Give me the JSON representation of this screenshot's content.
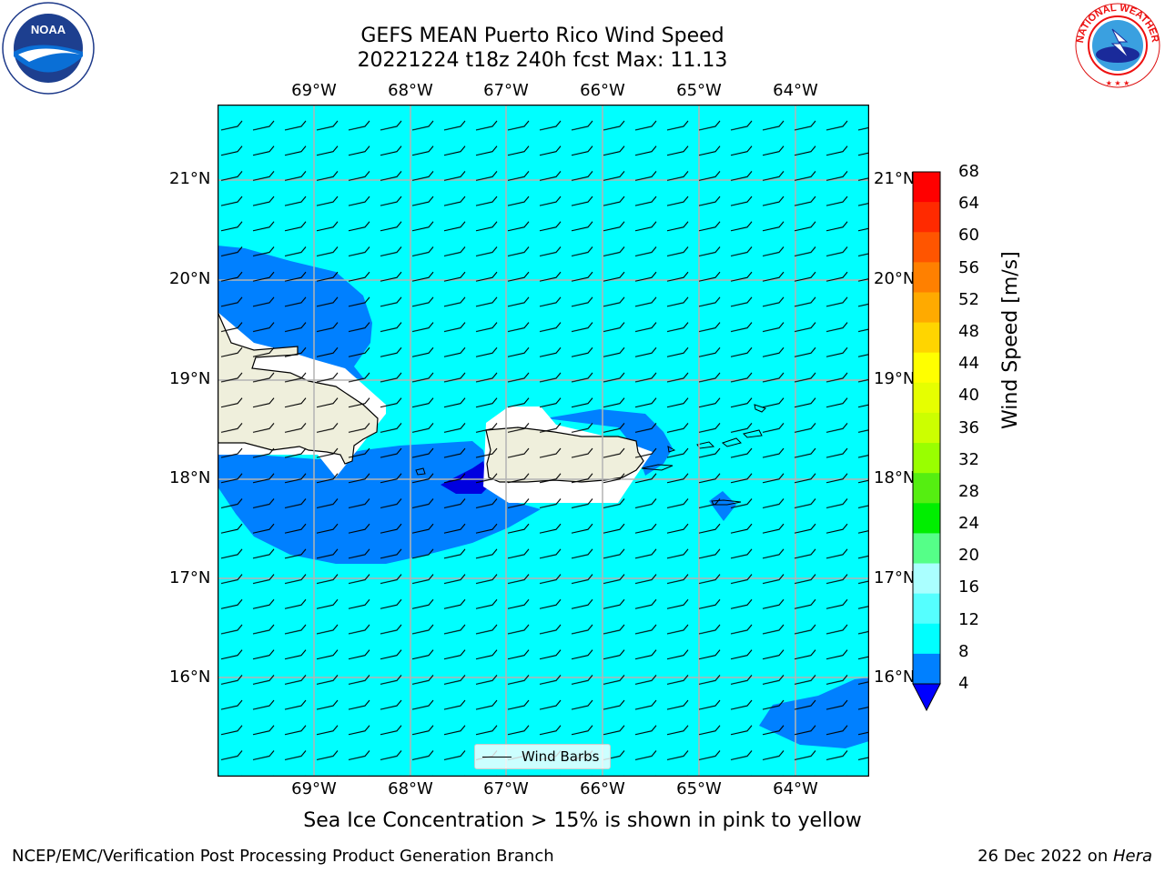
{
  "title": {
    "line1": "GEFS MEAN Puerto Rico Wind Speed",
    "line2": "20221224 t18z 240h fcst   Max: 11.13"
  },
  "logos": {
    "left": {
      "icon": "noaa-logo",
      "text": "NOAA"
    },
    "right": {
      "icon": "nws-logo",
      "text": "NATIONAL WEATHER SERVICE"
    }
  },
  "map": {
    "lat_labels": [
      "21°N",
      "20°N",
      "19°N",
      "18°N",
      "17°N",
      "16°N"
    ],
    "lon_labels": [
      "69°W",
      "68°W",
      "67°W",
      "66°W",
      "65°W",
      "64°W"
    ],
    "legend_label": "Wind Barbs",
    "field_colors": {
      "ocean_8_12": "#00ffff",
      "wind_4_8": "#0080ff",
      "wind_lt4": "#0000e0",
      "land": "#efefdc"
    }
  },
  "colorbar": {
    "label": "Wind Speed [m/s]",
    "ticks": [
      "68",
      "64",
      "60",
      "56",
      "52",
      "48",
      "44",
      "40",
      "36",
      "32",
      "28",
      "24",
      "20",
      "16",
      "12",
      "8",
      "4"
    ],
    "colors": [
      "#ff0000",
      "#ff2a00",
      "#ff5500",
      "#ff8000",
      "#ffaa00",
      "#ffd500",
      "#ffff00",
      "#e6ff00",
      "#ccff00",
      "#99ff00",
      "#55ee11",
      "#00ee00",
      "#55ff88",
      "#aaffff",
      "#55ffff",
      "#00ffff",
      "#0080ff"
    ],
    "under_color": "#0000ff"
  },
  "caption": "Sea Ice Concentration > 15% is shown in pink to yellow",
  "footer": {
    "left": "NCEP/EMC/Verification Post Processing Product Generation Branch",
    "date": "26 Dec 2022 on ",
    "machine": "Hera"
  }
}
